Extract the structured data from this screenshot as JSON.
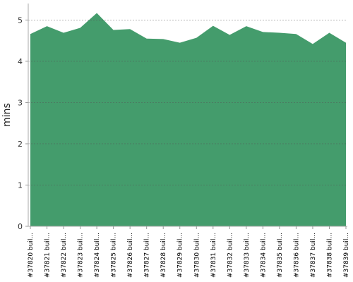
{
  "chart_data": {
    "type": "area",
    "y_label": "mins",
    "color": "#449c6c",
    "categories": [
      "#37820 buil...",
      "#37821 buil...",
      "#37822 buil...",
      "#37823 buil...",
      "#37824 buil...",
      "#37825 buil...",
      "#37826 buil...",
      "#37827 buil...",
      "#37828 buil...",
      "#37829 buil...",
      "#37830 buil...",
      "#37831 buil...",
      "#37832 buil...",
      "#37833 buil...",
      "#37834 buil...",
      "#37835 buil...",
      "#37836 buil...",
      "#37837 buil...",
      "#37838 buil...",
      "#37839 buil..."
    ],
    "values": [
      4.66,
      4.85,
      4.69,
      4.81,
      5.17,
      4.76,
      4.78,
      4.55,
      4.54,
      4.45,
      4.57,
      4.86,
      4.64,
      4.85,
      4.71,
      4.69,
      4.66,
      4.42,
      4.69,
      4.45
    ],
    "ylim": [
      0,
      5.4
    ],
    "yticks": [
      0,
      1,
      2,
      3,
      4,
      5
    ],
    "grid": true
  }
}
